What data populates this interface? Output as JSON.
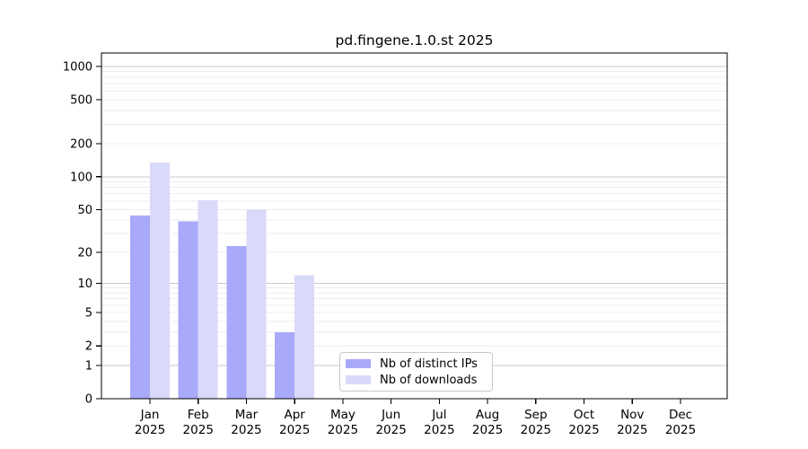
{
  "chart_data": {
    "type": "bar",
    "title": "pd.fingene.1.0.st 2025",
    "categories": [
      "Jan",
      "Feb",
      "Mar",
      "Apr",
      "May",
      "Jun",
      "Jul",
      "Aug",
      "Sep",
      "Oct",
      "Nov",
      "Dec"
    ],
    "category_year": "2025",
    "series": [
      {
        "name": "Nb of distinct IPs",
        "color": "#a9a9f9",
        "values": [
          44,
          39,
          23,
          3,
          0,
          0,
          0,
          0,
          0,
          0,
          0,
          0
        ]
      },
      {
        "name": "Nb of downloads",
        "color": "#d9d9f9",
        "values": [
          135,
          61,
          50,
          12,
          0,
          0,
          0,
          0,
          0,
          0,
          0,
          0
        ]
      }
    ],
    "y_axis": {
      "scale": "log10(1+x)",
      "ticks": [
        0,
        1,
        2,
        5,
        10,
        20,
        50,
        100,
        200,
        500,
        1000
      ],
      "major_gridlines": [
        1,
        10,
        100,
        1000
      ],
      "ylim": [
        0,
        1300
      ]
    },
    "x_axis": {
      "label_line1": "month",
      "label_line2": "year"
    },
    "legend": {
      "position": "inside-bottom-center",
      "entries": [
        "Nb of distinct IPs",
        "Nb of downloads"
      ]
    },
    "colors": {
      "major_gridline": "#c8c8c8",
      "minor_gridline": "#ededed",
      "axis": "#000000",
      "background": "#ffffff"
    }
  }
}
